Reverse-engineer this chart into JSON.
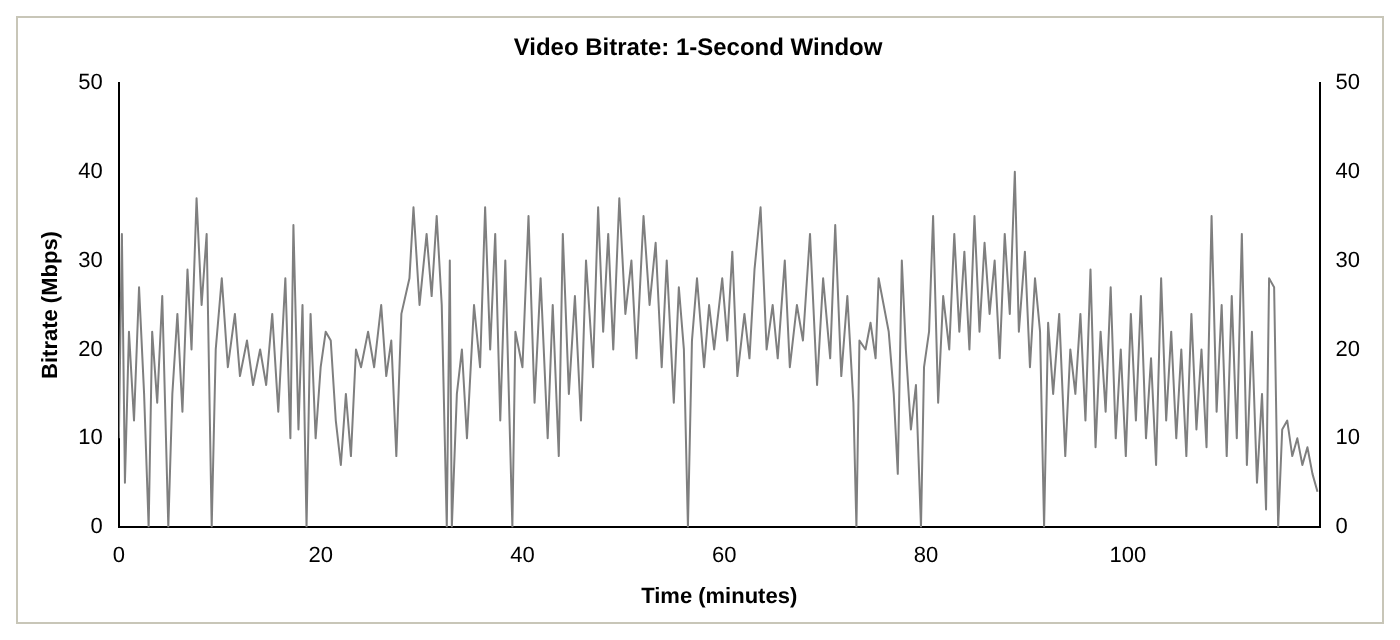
{
  "chart_data": {
    "type": "line",
    "title": "Video Bitrate: 1-Second Window",
    "xlabel": "Time (minutes)",
    "ylabel": "Bitrate (Mbps)",
    "xlim": [
      0,
      119
    ],
    "xticks": [
      0,
      20,
      40,
      60,
      80,
      100
    ],
    "ylim": [
      0,
      50
    ],
    "yticks": [
      0,
      10,
      20,
      30,
      40,
      50
    ],
    "y2lim": [
      0,
      50
    ],
    "y2ticks": [
      0,
      10,
      20,
      30,
      40,
      50
    ],
    "grid": false,
    "legend": false,
    "marker": "none",
    "line_style": "solid",
    "series": [
      {
        "color": "#7f7f7f",
        "x": [
          0,
          0.3,
          0.6,
          1,
          1.5,
          2,
          2.5,
          2.95,
          3.3,
          3.8,
          4.3,
          4.9,
          5.3,
          5.8,
          6.3,
          6.8,
          7.2,
          7.7,
          8.2,
          8.7,
          9.2,
          9.6,
          10.2,
          10.8,
          11.5,
          12,
          12.7,
          13.3,
          14,
          14.6,
          15.2,
          15.8,
          16.5,
          17,
          17.3,
          17.8,
          18.2,
          18.6,
          19,
          19.5,
          20,
          20.5,
          21,
          21.5,
          22,
          22.5,
          23,
          23.5,
          24,
          24.7,
          25.3,
          26,
          26.5,
          27,
          27.5,
          28,
          28.8,
          29.2,
          29.8,
          30.5,
          31,
          31.5,
          32,
          32.5,
          32.8,
          33,
          33.5,
          34,
          34.5,
          35.2,
          35.8,
          36.3,
          36.8,
          37.3,
          37.8,
          38.3,
          39,
          39.3,
          40,
          40.6,
          41.2,
          41.8,
          42.5,
          43,
          43.6,
          44,
          44.6,
          45.2,
          45.8,
          46.3,
          47,
          47.5,
          48,
          48.5,
          49,
          49.6,
          50.2,
          50.8,
          51.3,
          52,
          52.6,
          53.2,
          53.8,
          54.3,
          55,
          55.5,
          56,
          56.4,
          56.8,
          57.3,
          58,
          58.5,
          59,
          59.8,
          60.3,
          60.8,
          61.3,
          62,
          62.5,
          63,
          63.6,
          64.2,
          64.8,
          65.3,
          66,
          66.5,
          67.2,
          67.8,
          68.5,
          69.2,
          69.8,
          70.5,
          71,
          71.6,
          72.2,
          72.8,
          73.1,
          73.4,
          74,
          74.5,
          75,
          75.3,
          75.8,
          76.3,
          76.8,
          77.2,
          77.6,
          78,
          78.5,
          79,
          79.5,
          79.8,
          80.3,
          80.7,
          81.2,
          81.7,
          82.3,
          82.8,
          83.3,
          83.8,
          84.3,
          84.8,
          85.3,
          85.8,
          86.3,
          86.8,
          87.3,
          87.8,
          88.3,
          88.8,
          89.2,
          89.8,
          90.3,
          90.8,
          91.3,
          91.7,
          92.1,
          92.6,
          93.2,
          93.8,
          94.3,
          94.8,
          95.3,
          95.8,
          96.3,
          96.8,
          97.3,
          97.8,
          98.3,
          98.8,
          99.3,
          99.8,
          100.3,
          100.8,
          101.3,
          101.8,
          102.3,
          102.8,
          103.3,
          103.8,
          104.3,
          104.8,
          105.3,
          105.8,
          106.3,
          106.8,
          107.3,
          107.8,
          108.3,
          108.8,
          109.3,
          109.8,
          110.3,
          110.8,
          111.3,
          111.8,
          112.3,
          112.8,
          113.3,
          113.7,
          114,
          114.5,
          114.9,
          115.3,
          115.8,
          116.3,
          116.8,
          117.3,
          117.8,
          118.3,
          118.8
        ],
        "values": [
          10,
          33,
          5,
          22,
          12,
          27,
          15,
          0,
          22,
          14,
          26,
          0,
          15,
          24,
          13,
          29,
          20,
          37,
          25,
          33,
          0,
          20,
          28,
          18,
          24,
          17,
          21,
          16,
          20,
          16,
          24,
          13,
          28,
          10,
          34,
          11,
          25,
          0,
          24,
          10,
          18,
          22,
          21,
          12,
          7,
          15,
          8,
          20,
          18,
          22,
          18,
          25,
          17,
          21,
          8,
          24,
          28,
          36,
          25,
          33,
          26,
          35,
          25,
          0,
          30,
          0,
          15,
          20,
          10,
          25,
          18,
          36,
          20,
          33,
          12,
          30,
          0,
          22,
          18,
          35,
          14,
          28,
          10,
          25,
          8,
          33,
          15,
          26,
          12,
          30,
          18,
          36,
          22,
          33,
          20,
          37,
          24,
          30,
          19,
          35,
          25,
          32,
          18,
          30,
          14,
          27,
          20,
          0,
          21,
          28,
          18,
          25,
          20,
          28,
          21,
          31,
          17,
          24,
          19,
          29,
          36,
          20,
          25,
          19,
          30,
          18,
          25,
          21,
          33,
          16,
          28,
          19,
          34,
          17,
          26,
          14,
          0,
          21,
          20,
          23,
          19,
          28,
          25,
          22,
          15,
          6,
          30,
          20,
          11,
          16,
          0,
          18,
          22,
          35,
          14,
          26,
          20,
          33,
          22,
          31,
          20,
          35,
          22,
          32,
          24,
          30,
          19,
          33,
          24,
          40,
          22,
          31,
          18,
          28,
          22,
          0,
          23,
          15,
          24,
          8,
          20,
          15,
          24,
          12,
          29,
          9,
          22,
          13,
          27,
          10,
          20,
          8,
          24,
          12,
          26,
          10,
          19,
          7,
          28,
          12,
          22,
          10,
          20,
          8,
          24,
          11,
          20,
          9,
          35,
          13,
          25,
          8,
          26,
          10,
          33,
          7,
          22,
          5,
          15,
          2,
          28,
          27,
          0,
          11,
          12,
          8,
          10,
          7,
          9,
          6,
          4
        ]
      }
    ]
  }
}
